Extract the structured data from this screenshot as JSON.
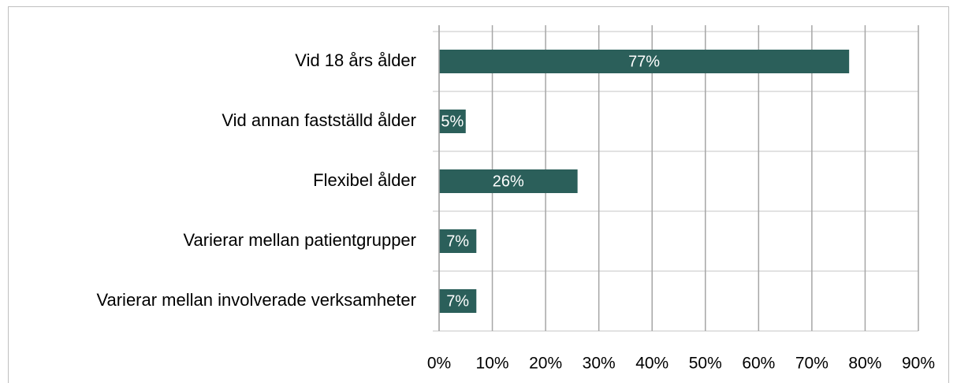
{
  "chart_data": {
    "type": "bar",
    "orientation": "horizontal",
    "categories": [
      "Vid 18 års ålder",
      "Vid annan fastställd ålder",
      "Flexibel ålder",
      "Varierar mellan patientgrupper",
      "Varierar mellan involverade verksamheter"
    ],
    "values": [
      77,
      5,
      26,
      7,
      7
    ],
    "value_labels": [
      "77%",
      "5%",
      "26%",
      "7%",
      "7%"
    ],
    "color": "#2b5f5a",
    "xlim": [
      0,
      90
    ],
    "xticks": [
      {
        "value": 0,
        "label": "0%"
      },
      {
        "value": 10,
        "label": "10%"
      },
      {
        "value": 20,
        "label": "20%"
      },
      {
        "value": 30,
        "label": "30%"
      },
      {
        "value": 40,
        "label": "40%"
      },
      {
        "value": 50,
        "label": "50%"
      },
      {
        "value": 60,
        "label": "60%"
      },
      {
        "value": 70,
        "label": "70%"
      },
      {
        "value": 80,
        "label": "80%"
      },
      {
        "value": 90,
        "label": "90%"
      }
    ],
    "grid": true
  }
}
